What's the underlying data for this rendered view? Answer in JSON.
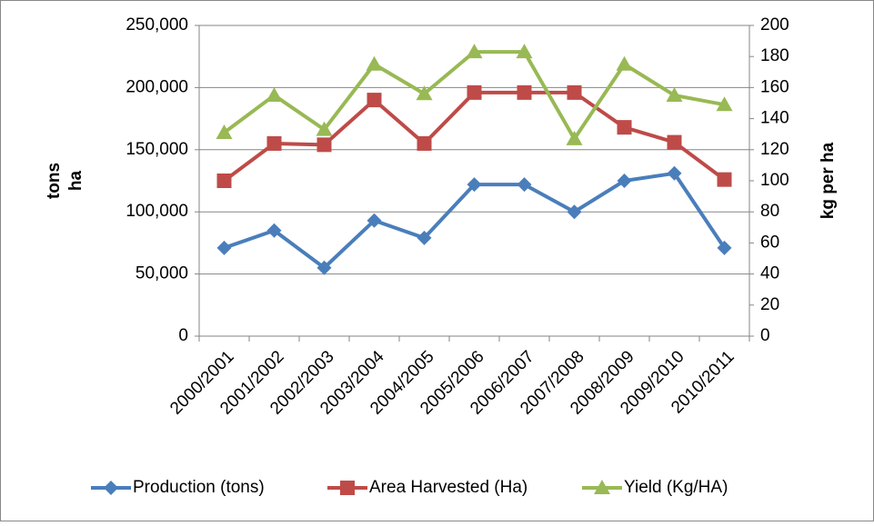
{
  "chart_data": {
    "type": "line",
    "categories": [
      "2000/2001",
      "2001/2002",
      "2002/2003",
      "2003/2004",
      "2004/2005",
      "2005/2006",
      "2006/2007",
      "2007/2008",
      "2008/2009",
      "2009/2010",
      "2010/2011"
    ],
    "series": [
      {
        "name": "Production (tons)",
        "color": "#4a7ebb",
        "marker": "diamond",
        "values": [
          71000,
          85000,
          55000,
          93000,
          79000,
          122000,
          122000,
          100000,
          125000,
          131000,
          71000
        ]
      },
      {
        "name": "Area Harvested (Ha)",
        "color": "#be4b48",
        "marker": "square",
        "values": [
          125000,
          155000,
          154000,
          190000,
          155000,
          196000,
          196000,
          196000,
          168000,
          156000,
          126000
        ]
      },
      {
        "name": "Yield (Kg/HA)",
        "color": "#98b954",
        "marker": "triangle",
        "axis": "y2",
        "values": [
          131,
          155,
          133,
          175,
          156,
          183,
          183,
          127,
          175,
          155,
          149
        ]
      }
    ],
    "y_label": [
      "tons",
      "ha"
    ],
    "y2_label": "kg per ha",
    "ylim": [
      0,
      250000
    ],
    "yticks": [
      {
        "value": 0,
        "label": "0"
      },
      {
        "value": 50000,
        "label": "50,000"
      },
      {
        "value": 100000,
        "label": "100,000"
      },
      {
        "value": 150000,
        "label": "150,000"
      },
      {
        "value": 200000,
        "label": "200,000"
      },
      {
        "value": 250000,
        "label": "250,000"
      }
    ],
    "y2lim": [
      0,
      200
    ],
    "y2ticks": [
      0,
      20,
      40,
      60,
      80,
      100,
      120,
      140,
      160,
      180,
      200
    ],
    "grid": true,
    "legend": "bottom"
  }
}
